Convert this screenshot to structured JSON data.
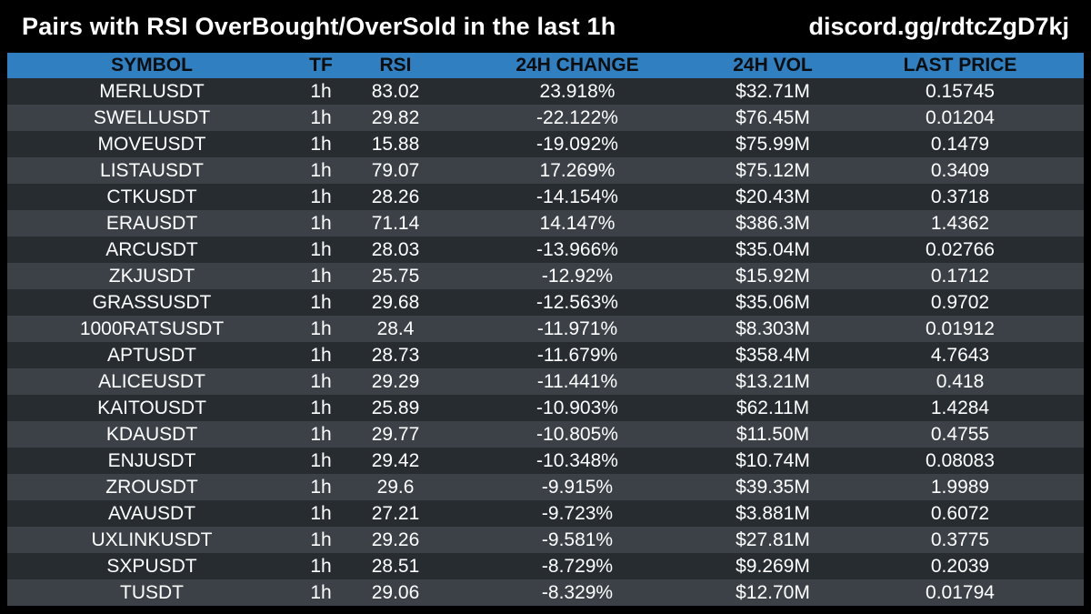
{
  "header": {
    "title": "Pairs with RSI OverBought/OverSold in the last 1h",
    "link": "discord.gg/rdtcZgD7kj"
  },
  "colors": {
    "background": "#000000",
    "header_row": "#2f7fc1",
    "row_dark": "#272c31",
    "row_light": "#3b4147",
    "text": "#ffffff"
  },
  "table": {
    "columns": [
      "SYMBOL",
      "TF",
      "RSI",
      "24H CHANGE",
      "24H VOL",
      "LAST PRICE"
    ],
    "rows": [
      [
        "MERLUSDT",
        "1h",
        "83.02",
        "23.918%",
        "$32.71M",
        "0.15745"
      ],
      [
        "SWELLUSDT",
        "1h",
        "29.82",
        "-22.122%",
        "$76.45M",
        "0.01204"
      ],
      [
        "MOVEUSDT",
        "1h",
        "15.88",
        "-19.092%",
        "$75.99M",
        "0.1479"
      ],
      [
        "LISTAUSDT",
        "1h",
        "79.07",
        "17.269%",
        "$75.12M",
        "0.3409"
      ],
      [
        "CTKUSDT",
        "1h",
        "28.26",
        "-14.154%",
        "$20.43M",
        "0.3718"
      ],
      [
        "ERAUSDT",
        "1h",
        "71.14",
        "14.147%",
        "$386.3M",
        "1.4362"
      ],
      [
        "ARCUSDT",
        "1h",
        "28.03",
        "-13.966%",
        "$35.04M",
        "0.02766"
      ],
      [
        "ZKJUSDT",
        "1h",
        "25.75",
        "-12.92%",
        "$15.92M",
        "0.1712"
      ],
      [
        "GRASSUSDT",
        "1h",
        "29.68",
        "-12.563%",
        "$35.06M",
        "0.9702"
      ],
      [
        "1000RATSUSDT",
        "1h",
        "28.4",
        "-11.971%",
        "$8.303M",
        "0.01912"
      ],
      [
        "APTUSDT",
        "1h",
        "28.73",
        "-11.679%",
        "$358.4M",
        "4.7643"
      ],
      [
        "ALICEUSDT",
        "1h",
        "29.29",
        "-11.441%",
        "$13.21M",
        "0.418"
      ],
      [
        "KAITOUSDT",
        "1h",
        "25.89",
        "-10.903%",
        "$62.11M",
        "1.4284"
      ],
      [
        "KDAUSDT",
        "1h",
        "29.77",
        "-10.805%",
        "$11.50M",
        "0.4755"
      ],
      [
        "ENJUSDT",
        "1h",
        "29.42",
        "-10.348%",
        "$10.74M",
        "0.08083"
      ],
      [
        "ZROUSDT",
        "1h",
        "29.6",
        "-9.915%",
        "$39.35M",
        "1.9989"
      ],
      [
        "AVAUSDT",
        "1h",
        "27.21",
        "-9.723%",
        "$3.881M",
        "0.6072"
      ],
      [
        "UXLINKUSDT",
        "1h",
        "29.26",
        "-9.581%",
        "$27.81M",
        "0.3775"
      ],
      [
        "SXPUSDT",
        "1h",
        "28.51",
        "-8.729%",
        "$9.269M",
        "0.2039"
      ],
      [
        "TUSDT",
        "1h",
        "29.06",
        "-8.329%",
        "$12.70M",
        "0.01794"
      ]
    ]
  }
}
